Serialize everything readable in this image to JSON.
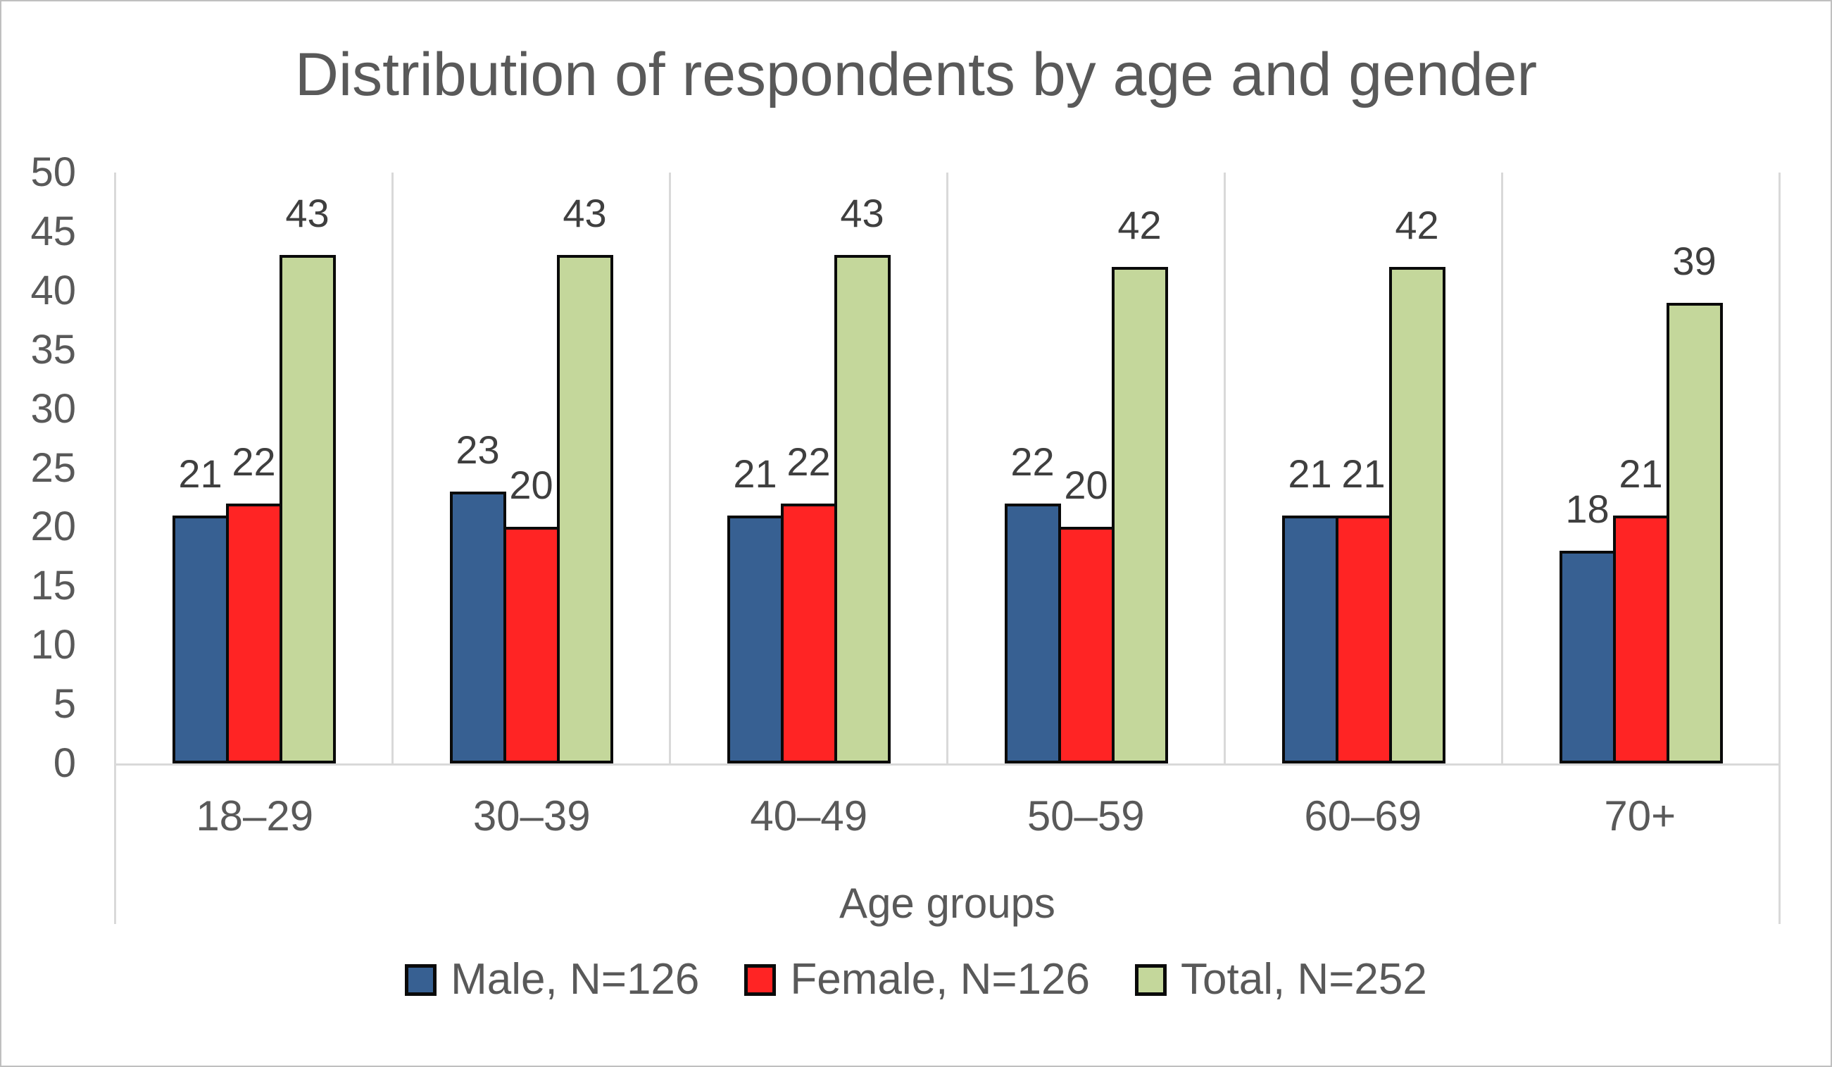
{
  "figure": {
    "title": "Distribution of respondents by age and gender",
    "x_axis_title": "Age groups"
  },
  "chart_data": {
    "type": "bar",
    "title": "Distribution of respondents by age and gender",
    "xlabel": "Age groups",
    "ylabel": "",
    "ylim": [
      0,
      50
    ],
    "yticks": [
      0,
      5,
      10,
      15,
      20,
      25,
      30,
      35,
      40,
      45,
      50
    ],
    "categories": [
      "18–29",
      "30–39",
      "40–49",
      "50–59",
      "60–69",
      "70+"
    ],
    "series": [
      {
        "name": "Male, N=126",
        "color": "#376092",
        "values": [
          21,
          23,
          21,
          22,
          21,
          18
        ]
      },
      {
        "name": "Female, N=126",
        "color": "#FF2424",
        "values": [
          22,
          20,
          22,
          20,
          21,
          21
        ]
      },
      {
        "name": "Total, N=252",
        "color": "#C4D79B",
        "values": [
          43,
          43,
          43,
          42,
          42,
          39
        ]
      }
    ],
    "data_labels": true,
    "grid": "vertical-between-categories",
    "legend_position": "bottom"
  },
  "colors": {
    "male": "#376092",
    "female": "#FF2424",
    "total": "#C4D79B",
    "bar_outline": "#0A0A0A",
    "gridline": "#D9D9D9",
    "axis_text": "#595959",
    "data_label_text": "#3F3F3F",
    "figure_border": "#BFBFBF"
  }
}
